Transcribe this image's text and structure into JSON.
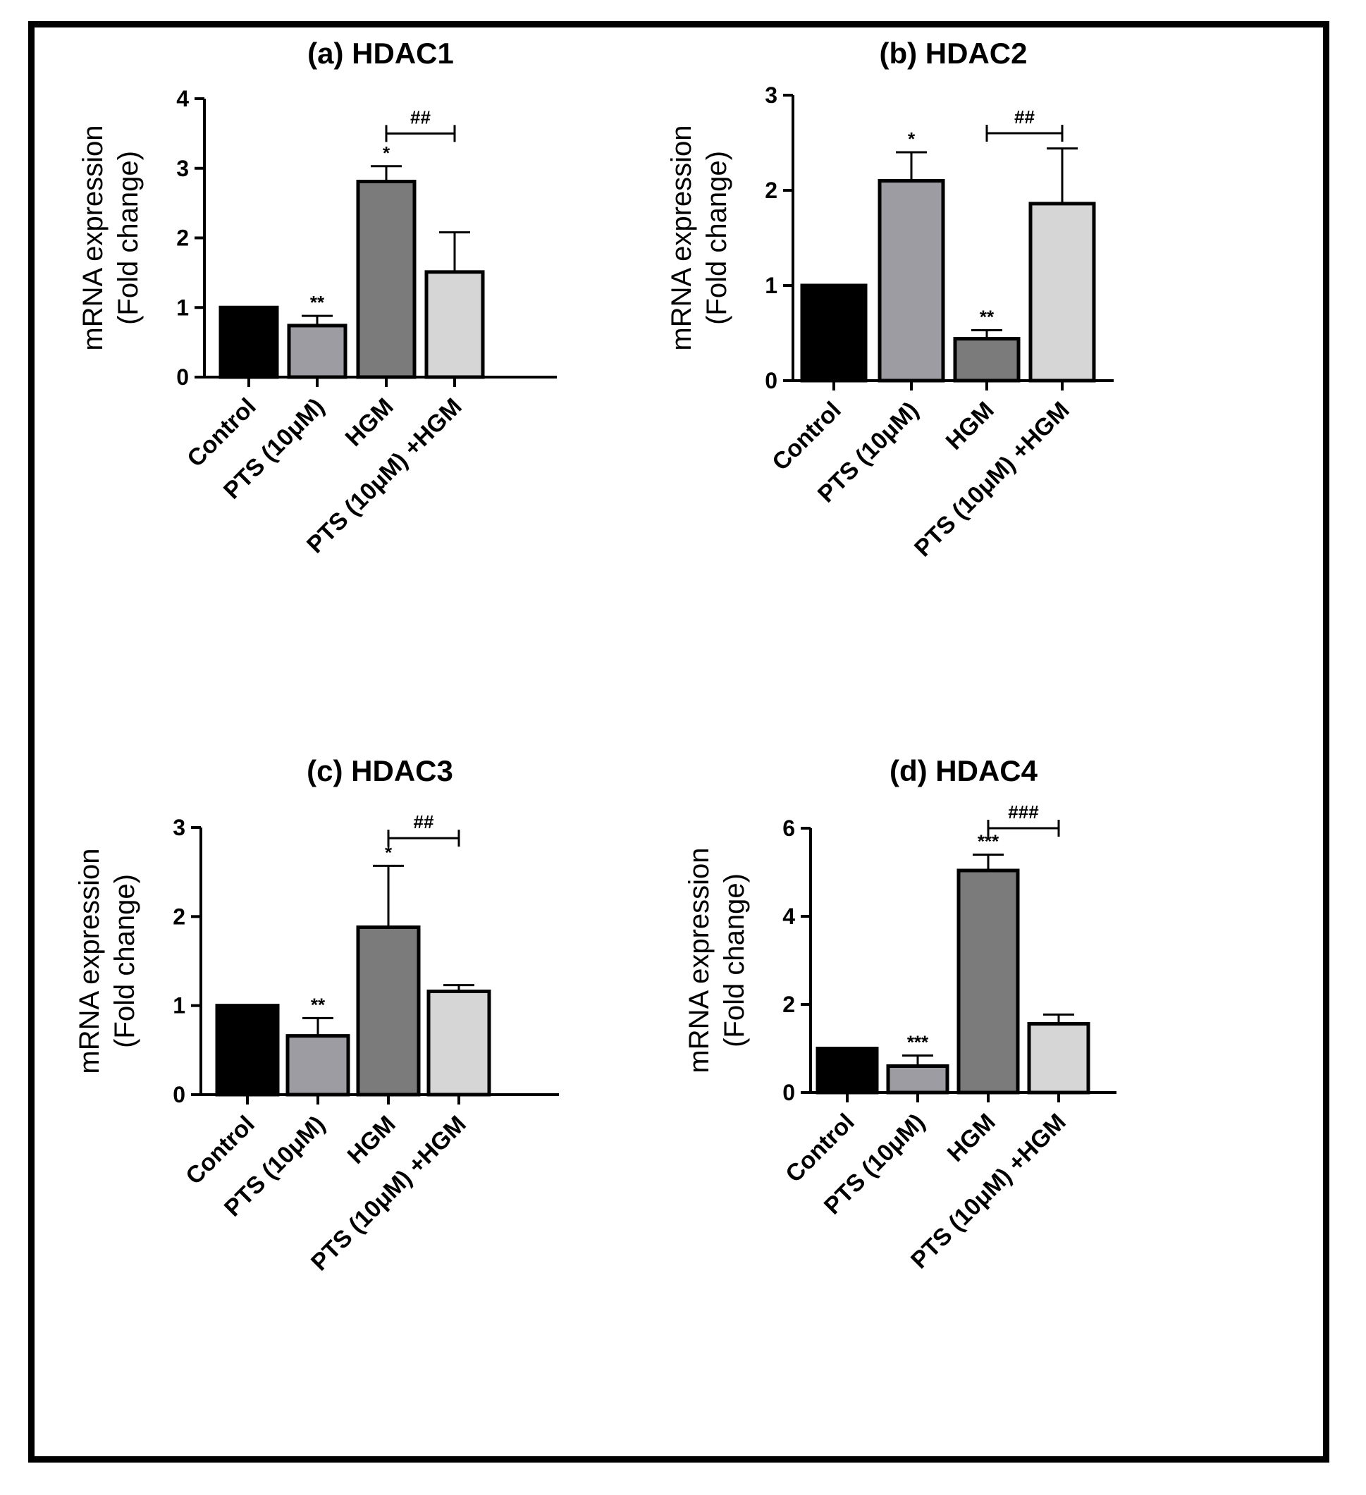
{
  "chart_data": [
    {
      "type": "bar",
      "title": "(a) HDAC1",
      "ylabel_line1": "mRNA expression",
      "ylabel_line2": "(Fold change)",
      "ylim": [
        0,
        4
      ],
      "yticks": [
        0,
        1,
        2,
        3,
        4
      ],
      "categories": [
        "Control",
        "PTS (10μM)",
        "HGM",
        "PTS (10μM) +HGM"
      ],
      "values": [
        1.0,
        0.74,
        2.81,
        1.51
      ],
      "errors": [
        0,
        0.14,
        0.22,
        0.57
      ],
      "bar_colors": [
        "#000000",
        "#9c9ca2",
        "#7b7b7b",
        "#d6d6d6"
      ],
      "significance": [
        "",
        "**",
        "*",
        ""
      ],
      "bracket": {
        "from": 2,
        "to": 3,
        "label": "##",
        "y": 3.5
      }
    },
    {
      "type": "bar",
      "title": "(b) HDAC2",
      "ylabel_line1": "mRNA expression",
      "ylabel_line2": "(Fold change)",
      "ylim": [
        0,
        3
      ],
      "yticks": [
        0,
        1,
        2,
        3
      ],
      "categories": [
        "Control",
        "PTS (10μM)",
        "HGM",
        "PTS (10μM) +HGM"
      ],
      "values": [
        1.0,
        2.1,
        0.44,
        1.86
      ],
      "errors": [
        0,
        0.3,
        0.09,
        0.58
      ],
      "bar_colors": [
        "#000000",
        "#9c9ca2",
        "#7b7b7b",
        "#d6d6d6"
      ],
      "significance": [
        "",
        "*",
        "**",
        ""
      ],
      "bracket": {
        "from": 2,
        "to": 3,
        "label": "##",
        "y": 2.6
      }
    },
    {
      "type": "bar",
      "title": "(c) HDAC3",
      "ylabel_line1": "mRNA expression",
      "ylabel_line2": "(Fold change)",
      "ylim": [
        0,
        3
      ],
      "yticks": [
        0,
        1,
        2,
        3
      ],
      "categories": [
        "Control",
        "PTS (10μM)",
        "HGM",
        "PTS (10μM) +HGM"
      ],
      "values": [
        1.0,
        0.66,
        1.88,
        1.16
      ],
      "errors": [
        0,
        0.2,
        0.69,
        0.07
      ],
      "bar_colors": [
        "#000000",
        "#9c9ca2",
        "#7b7b7b",
        "#d6d6d6"
      ],
      "significance": [
        "",
        "**",
        "*",
        ""
      ],
      "bracket": {
        "from": 2,
        "to": 3,
        "label": "##",
        "y": 2.88
      }
    },
    {
      "type": "bar",
      "title": "(d) HDAC4",
      "ylabel_line1": "mRNA expression",
      "ylabel_line2": "(Fold change)",
      "ylim": [
        0,
        6
      ],
      "yticks": [
        0,
        2,
        4,
        6
      ],
      "categories": [
        "Control",
        "PTS (10μM)",
        "HGM",
        "PTS (10μM) +HGM"
      ],
      "values": [
        1.0,
        0.6,
        5.04,
        1.56
      ],
      "errors": [
        0,
        0.24,
        0.36,
        0.21
      ],
      "bar_colors": [
        "#000000",
        "#9c9ca2",
        "#7b7b7b",
        "#d6d6d6"
      ],
      "significance": [
        "",
        "***",
        "***",
        ""
      ],
      "bracket": {
        "from": 2,
        "to": 3,
        "label": "###",
        "y": 6.0
      }
    }
  ]
}
